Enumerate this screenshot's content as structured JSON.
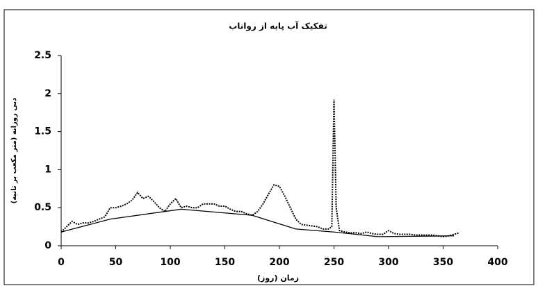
{
  "chart_data": {
    "type": "line",
    "title": "تفکیک آب پایه از رواناب",
    "x_label": "زمان (روز)",
    "y_label": "دبی روزانه (متر مکعب بر ثانیه)",
    "xlim": [
      0,
      400
    ],
    "xticks": [
      0,
      50,
      100,
      150,
      200,
      250,
      300,
      350,
      400
    ],
    "ylim": [
      0,
      2.5
    ],
    "yticks": [
      0,
      0.5,
      1,
      1.5,
      2,
      {
        "value": 2.5,
        "label": "2.5"
      }
    ],
    "series": [
      {
        "color": "#000000",
        "style": "dotted",
        "x": [
          0,
          5,
          10,
          15,
          20,
          25,
          30,
          35,
          40,
          45,
          50,
          55,
          60,
          65,
          70,
          75,
          80,
          85,
          90,
          95,
          100,
          105,
          110,
          115,
          120,
          125,
          130,
          135,
          140,
          145,
          150,
          155,
          160,
          165,
          170,
          175,
          180,
          185,
          190,
          195,
          200,
          205,
          210,
          215,
          220,
          225,
          230,
          235,
          240,
          245,
          248,
          250,
          252,
          255,
          260,
          265,
          270,
          275,
          280,
          285,
          290,
          295,
          300,
          305,
          310,
          315,
          320,
          325,
          330,
          335,
          340,
          345,
          350,
          355,
          360,
          365
        ],
        "values": [
          0.18,
          0.25,
          0.32,
          0.28,
          0.3,
          0.3,
          0.32,
          0.35,
          0.38,
          0.5,
          0.5,
          0.52,
          0.55,
          0.6,
          0.7,
          0.62,
          0.65,
          0.58,
          0.5,
          0.45,
          0.55,
          0.62,
          0.5,
          0.52,
          0.5,
          0.5,
          0.55,
          0.55,
          0.55,
          0.52,
          0.52,
          0.48,
          0.45,
          0.45,
          0.42,
          0.4,
          0.45,
          0.55,
          0.68,
          0.8,
          0.78,
          0.65,
          0.5,
          0.35,
          0.28,
          0.27,
          0.26,
          0.25,
          0.22,
          0.22,
          0.25,
          1.92,
          0.5,
          0.2,
          0.18,
          0.17,
          0.17,
          0.16,
          0.18,
          0.16,
          0.15,
          0.15,
          0.2,
          0.16,
          0.15,
          0.15,
          0.15,
          0.14,
          0.14,
          0.14,
          0.14,
          0.13,
          0.12,
          0.13,
          0.15,
          0.17
        ]
      },
      {
        "color": "#000000",
        "style": "solid",
        "x": [
          0,
          45,
          110,
          175,
          215,
          250,
          290,
          360
        ],
        "values": [
          0.18,
          0.35,
          0.48,
          0.4,
          0.22,
          0.18,
          0.12,
          0.13
        ]
      }
    ]
  }
}
